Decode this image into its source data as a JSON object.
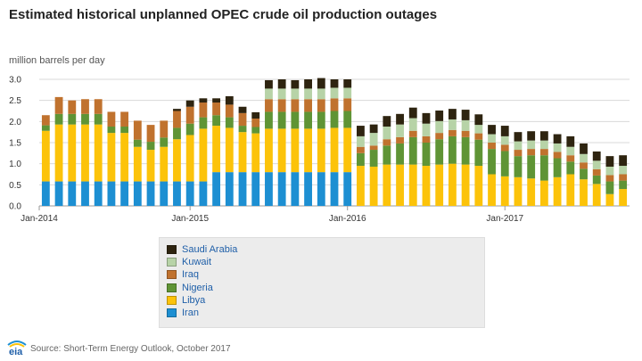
{
  "title": "Estimated historical unplanned OPEC crude oil production outages",
  "unit_label": "million barrels per day",
  "source": "Source: Short-Term Energy Outlook, October 2017",
  "logo_text": "eia",
  "legend": [
    {
      "name": "Saudi Arabia",
      "color": "#2e2410"
    },
    {
      "name": "Kuwait",
      "color": "#b7d3a7"
    },
    {
      "name": "Iraq",
      "color": "#c0722e"
    },
    {
      "name": "Nigeria",
      "color": "#5f9435"
    },
    {
      "name": "Libya",
      "color": "#fcc30a"
    },
    {
      "name": "Iran",
      "color": "#1d8fd2"
    }
  ],
  "chart_data": {
    "type": "bar",
    "stacked": true,
    "title": "Estimated historical unplanned OPEC crude oil production outages",
    "ylabel": "million barrels per day",
    "ylim": [
      0,
      3.0
    ],
    "yticks": [
      "0.0",
      "0.5",
      "1.0",
      "1.5",
      "2.0",
      "2.5",
      "3.0"
    ],
    "xtick_labels": [
      "Jan-2014",
      "Jan-2015",
      "Jan-2016",
      "Jan-2017"
    ],
    "xtick_indices": [
      0,
      12,
      24,
      36
    ],
    "grid": true,
    "categories": [
      "Jan-2014",
      "Feb-2014",
      "Mar-2014",
      "Apr-2014",
      "May-2014",
      "Jun-2014",
      "Jul-2014",
      "Aug-2014",
      "Sep-2014",
      "Oct-2014",
      "Nov-2014",
      "Dec-2014",
      "Jan-2015",
      "Feb-2015",
      "Mar-2015",
      "Apr-2015",
      "May-2015",
      "Jun-2015",
      "Jul-2015",
      "Aug-2015",
      "Sep-2015",
      "Oct-2015",
      "Nov-2015",
      "Dec-2015",
      "Jan-2016",
      "Feb-2016",
      "Mar-2016",
      "Apr-2016",
      "May-2016",
      "Jun-2016",
      "Jul-2016",
      "Aug-2016",
      "Sep-2016",
      "Oct-2016",
      "Nov-2016",
      "Dec-2016",
      "Jan-2017",
      "Feb-2017",
      "Mar-2017",
      "Apr-2017",
      "May-2017",
      "Jun-2017",
      "Jul-2017",
      "Aug-2017",
      "Sep-2017"
    ],
    "series": [
      {
        "name": "Iran",
        "color": "#1d8fd2",
        "values": [
          0.58,
          0.58,
          0.58,
          0.58,
          0.58,
          0.58,
          0.58,
          0.58,
          0.58,
          0.58,
          0.58,
          0.58,
          0.58,
          0.8,
          0.8,
          0.8,
          0.8,
          0.8,
          0.8,
          0.8,
          0.8,
          0.8,
          0.8,
          0.8,
          0,
          0,
          0,
          0,
          0,
          0,
          0,
          0,
          0,
          0,
          0,
          0,
          0,
          0,
          0,
          0,
          0,
          0,
          0,
          0,
          0
        ]
      },
      {
        "name": "Libya",
        "color": "#fcc30a",
        "values": [
          1.2,
          1.35,
          1.35,
          1.35,
          1.35,
          1.15,
          1.15,
          0.82,
          0.75,
          0.82,
          1.0,
          1.1,
          1.25,
          1.1,
          1.05,
          0.95,
          0.92,
          1.03,
          1.03,
          1.03,
          1.03,
          1.03,
          1.05,
          1.05,
          0.95,
          0.93,
          0.98,
          0.98,
          0.98,
          0.95,
          0.98,
          1.0,
          0.98,
          0.95,
          0.75,
          0.7,
          0.68,
          0.65,
          0.6,
          0.68,
          0.75,
          0.63,
          0.52,
          0.28,
          0.4
        ]
      },
      {
        "name": "Nigeria",
        "color": "#5f9435",
        "values": [
          0.13,
          0.25,
          0.25,
          0.25,
          0.25,
          0.15,
          0.15,
          0.17,
          0.19,
          0.22,
          0.27,
          0.27,
          0.27,
          0.25,
          0.25,
          0.15,
          0.15,
          0.4,
          0.4,
          0.4,
          0.4,
          0.4,
          0.4,
          0.4,
          0.3,
          0.4,
          0.45,
          0.5,
          0.65,
          0.55,
          0.6,
          0.65,
          0.65,
          0.62,
          0.6,
          0.6,
          0.5,
          0.55,
          0.6,
          0.45,
          0.3,
          0.25,
          0.2,
          0.3,
          0.2
        ]
      },
      {
        "name": "Iraq",
        "color": "#c0722e",
        "values": [
          0.24,
          0.4,
          0.32,
          0.35,
          0.35,
          0.35,
          0.35,
          0.45,
          0.4,
          0.4,
          0.4,
          0.4,
          0.35,
          0.3,
          0.3,
          0.3,
          0.2,
          0.3,
          0.3,
          0.3,
          0.3,
          0.3,
          0.3,
          0.3,
          0.15,
          0.1,
          0.15,
          0.15,
          0.15,
          0.15,
          0.15,
          0.15,
          0.15,
          0.15,
          0.15,
          0.15,
          0.15,
          0.15,
          0.15,
          0.15,
          0.15,
          0.15,
          0.15,
          0.15,
          0.15
        ]
      },
      {
        "name": "Kuwait",
        "color": "#b7d3a7",
        "values": [
          0,
          0,
          0,
          0,
          0,
          0,
          0,
          0,
          0,
          0,
          0,
          0,
          0,
          0,
          0,
          0,
          0,
          0.25,
          0.25,
          0.25,
          0.25,
          0.25,
          0.25,
          0.25,
          0.25,
          0.3,
          0.3,
          0.3,
          0.3,
          0.3,
          0.28,
          0.25,
          0.25,
          0.2,
          0.2,
          0.2,
          0.2,
          0.2,
          0.2,
          0.2,
          0.2,
          0.2,
          0.2,
          0.2,
          0.2
        ]
      },
      {
        "name": "Saudi Arabia",
        "color": "#2e2410",
        "values": [
          0,
          0,
          0,
          0,
          0,
          0,
          0,
          0,
          0,
          0,
          0.05,
          0.15,
          0.1,
          0.1,
          0.2,
          0.15,
          0.15,
          0.2,
          0.22,
          0.2,
          0.22,
          0.25,
          0.2,
          0.2,
          0.25,
          0.2,
          0.25,
          0.25,
          0.25,
          0.25,
          0.25,
          0.25,
          0.25,
          0.25,
          0.22,
          0.25,
          0.22,
          0.22,
          0.22,
          0.22,
          0.25,
          0.25,
          0.22,
          0.25,
          0.25
        ]
      }
    ]
  }
}
